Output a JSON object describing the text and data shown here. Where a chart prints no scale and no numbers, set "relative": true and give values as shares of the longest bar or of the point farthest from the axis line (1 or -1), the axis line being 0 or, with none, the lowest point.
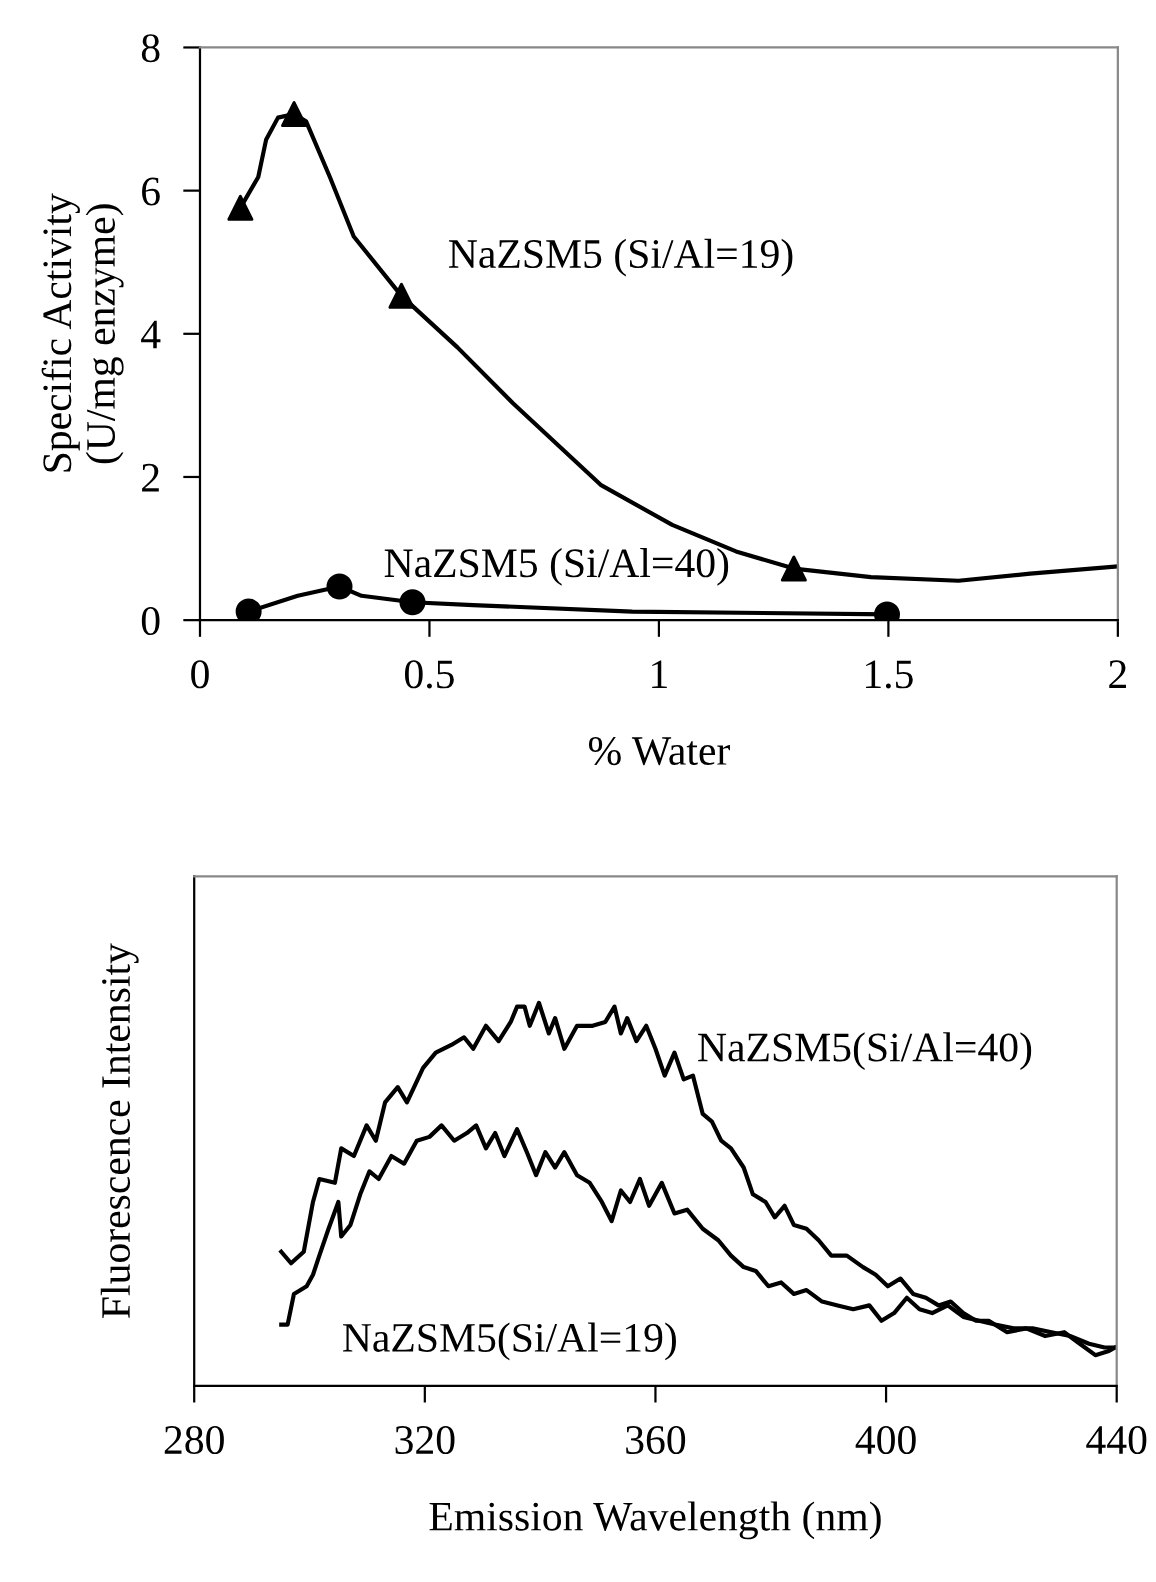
{
  "chart_data": [
    {
      "type": "line",
      "xlabel": "% Water",
      "ylabel": "Specific Activity\n(U/mg enzyme)",
      "xlim": [
        0,
        2
      ],
      "ylim": [
        0,
        8
      ],
      "xticks": [
        0,
        0.5,
        1,
        1.5,
        2
      ],
      "yticks": [
        0,
        2,
        4,
        6,
        8
      ],
      "grid": false,
      "legend": false,
      "series": [
        {
          "name": "NaZSM5 (Si/Al=19)",
          "type": "scatter",
          "marker": "triangle",
          "color": "#000000",
          "x": [
            0.088,
            0.205,
            0.439,
            1.294
          ],
          "values": [
            5.76,
            7.07,
            4.53,
            0.72
          ]
        },
        {
          "type": "line",
          "marker": "none",
          "color": "#000000",
          "x": [
            0.088,
            0.127,
            0.144,
            0.17,
            0.205,
            0.231,
            0.283,
            0.335,
            0.439,
            0.561,
            0.682,
            0.873,
            1.029,
            1.168,
            1.294,
            1.462,
            1.653,
            1.809,
            2.0
          ],
          "values": [
            5.76,
            6.19,
            6.71,
            7.02,
            7.07,
            6.97,
            6.19,
            5.36,
            4.53,
            3.81,
            3.03,
            1.89,
            1.33,
            0.96,
            0.72,
            0.6,
            0.55,
            0.65,
            0.75
          ]
        },
        {
          "name": "NaZSM5 (Si/Al=40)",
          "type": "scatter",
          "marker": "circle",
          "color": "#000000",
          "x": [
            0.106,
            0.304,
            0.463,
            1.497
          ],
          "values": [
            0.12,
            0.47,
            0.25,
            0.08
          ]
        },
        {
          "type": "line",
          "marker": "none",
          "color": "#000000",
          "x": [
            0.106,
            0.213,
            0.304,
            0.352,
            0.463,
            0.595,
            0.942,
            1.497
          ],
          "values": [
            0.12,
            0.34,
            0.47,
            0.34,
            0.25,
            0.21,
            0.12,
            0.08
          ]
        }
      ]
    },
    {
      "type": "line",
      "relative": true,
      "xlabel": "Emission Wavelength (nm)",
      "ylabel": "Fluorescence Intensity",
      "xlim": [
        280,
        440
      ],
      "xticks": [
        280,
        320,
        360,
        400,
        440
      ],
      "grid": false,
      "legend": false,
      "marker": "none",
      "series": [
        {
          "name": "NaZSM5(Si/Al=40)",
          "color": "#000000",
          "x": [
            295.1,
            296.8,
            299.0,
            300.6,
            301.7,
            304.4,
            305.5,
            307.7,
            309.9,
            311.5,
            313.1,
            315.3,
            316.9,
            319.7,
            321.9,
            324.6,
            326.8,
            328.4,
            330.6,
            332.8,
            334.9,
            336.0,
            337.3,
            338.2,
            339.8,
            341.5,
            342.6,
            344.2,
            346.4,
            349.1,
            351.3,
            352.9,
            354.0,
            355.1,
            356.7,
            358.4,
            360.0,
            361.6,
            363.3,
            364.9,
            366.5,
            368.2,
            369.8,
            371.4,
            373.1,
            375.3,
            376.9,
            379.1,
            380.7,
            382.4,
            384.0,
            386.2,
            388.3,
            390.5,
            393.2,
            396.0,
            398.2,
            400.3,
            402.5,
            404.7,
            406.9,
            409.1,
            411.2,
            413.4,
            415.6,
            417.8,
            421.0,
            424.3,
            427.6,
            430.9,
            433.6,
            436.3,
            438.5,
            439.7
          ],
          "values": [
            0.35,
            0.32,
            0.35,
            0.48,
            0.54,
            0.53,
            0.62,
            0.6,
            0.68,
            0.64,
            0.74,
            0.78,
            0.74,
            0.83,
            0.87,
            0.89,
            0.91,
            0.88,
            0.94,
            0.9,
            0.95,
            0.99,
            0.99,
            0.94,
            1.0,
            0.92,
            0.96,
            0.88,
            0.94,
            0.94,
            0.95,
            0.99,
            0.92,
            0.96,
            0.9,
            0.94,
            0.88,
            0.81,
            0.87,
            0.8,
            0.81,
            0.71,
            0.69,
            0.64,
            0.62,
            0.57,
            0.5,
            0.48,
            0.44,
            0.47,
            0.42,
            0.41,
            0.38,
            0.34,
            0.34,
            0.31,
            0.29,
            0.26,
            0.28,
            0.24,
            0.23,
            0.21,
            0.22,
            0.19,
            0.17,
            0.17,
            0.14,
            0.15,
            0.13,
            0.14,
            0.11,
            0.08,
            0.09,
            0.1
          ]
        },
        {
          "name": "NaZSM5(Si/Al=19)",
          "color": "#000000",
          "x": [
            295.1,
            296.2,
            297.3,
            299.5,
            300.6,
            301.7,
            303.3,
            305.0,
            305.5,
            307.1,
            308.8,
            310.4,
            312.0,
            314.2,
            316.4,
            318.6,
            320.8,
            322.9,
            325.1,
            327.3,
            328.9,
            330.6,
            332.2,
            333.8,
            336.0,
            337.7,
            339.3,
            340.9,
            342.6,
            344.2,
            346.4,
            348.6,
            350.7,
            352.4,
            354.0,
            355.6,
            357.3,
            358.9,
            361.1,
            363.3,
            365.5,
            368.2,
            370.9,
            373.1,
            375.3,
            377.4,
            379.6,
            381.8,
            384.0,
            386.2,
            388.9,
            391.6,
            394.3,
            397.1,
            399.2,
            401.4,
            403.6,
            405.8,
            408.0,
            410.7,
            413.4,
            416.1,
            418.9,
            422.1,
            425.4,
            428.7,
            431.9,
            435.2,
            437.9,
            440.0
          ],
          "values": [
            0.16,
            0.16,
            0.24,
            0.26,
            0.29,
            0.34,
            0.41,
            0.48,
            0.39,
            0.42,
            0.5,
            0.56,
            0.54,
            0.6,
            0.58,
            0.64,
            0.65,
            0.68,
            0.64,
            0.66,
            0.68,
            0.62,
            0.66,
            0.6,
            0.67,
            0.61,
            0.55,
            0.61,
            0.57,
            0.61,
            0.55,
            0.53,
            0.48,
            0.43,
            0.51,
            0.48,
            0.54,
            0.47,
            0.53,
            0.45,
            0.46,
            0.41,
            0.38,
            0.34,
            0.31,
            0.3,
            0.26,
            0.27,
            0.24,
            0.25,
            0.22,
            0.21,
            0.2,
            0.21,
            0.17,
            0.19,
            0.23,
            0.2,
            0.19,
            0.21,
            0.18,
            0.17,
            0.16,
            0.15,
            0.15,
            0.14,
            0.13,
            0.11,
            0.1,
            0.1
          ]
        }
      ]
    }
  ]
}
